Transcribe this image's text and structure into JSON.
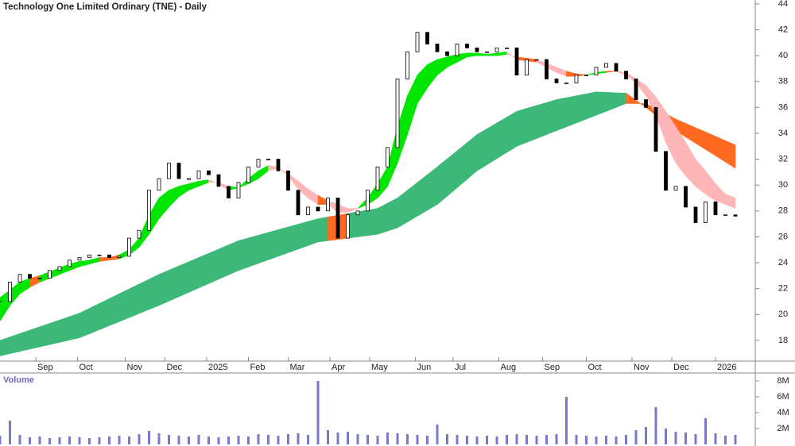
{
  "chart_data": [
    {
      "type": "stock",
      "title": "Technology One Limited Ordinary (TNE) - Daily",
      "x": [
        0,
        5,
        10,
        15,
        20,
        25,
        30,
        35,
        40,
        45,
        50,
        55,
        60,
        65,
        70,
        75,
        80,
        85,
        90,
        95,
        100,
        105,
        110,
        115,
        120,
        125,
        130,
        135,
        140,
        145,
        150,
        155,
        160,
        165,
        170,
        175,
        180,
        185,
        190,
        195,
        200,
        205,
        210,
        215,
        220,
        225,
        230,
        235,
        240,
        245,
        250,
        255,
        260,
        265,
        270,
        275,
        280,
        285,
        290,
        295,
        300,
        305,
        310,
        315,
        320,
        325,
        330,
        335,
        340,
        345,
        350,
        355,
        360,
        365,
        370
      ],
      "close": [
        21.0,
        22.5,
        23.1,
        22.8,
        22.8,
        23.4,
        23.7,
        24.2,
        24.4,
        24.6,
        24.6,
        24.4,
        24.5,
        25.9,
        26.5,
        29.6,
        30.5,
        31.7,
        30.5,
        30.5,
        31.1,
        30.8,
        29.9,
        29.0,
        30.2,
        31.4,
        32.0,
        32.0,
        31.1,
        29.6,
        27.7,
        28.3,
        28.0,
        29.0,
        25.9,
        27.7,
        28.0,
        29.6,
        31.4,
        32.9,
        38.2,
        40.3,
        41.8,
        40.9,
        40.3,
        40.0,
        40.9,
        40.6,
        40.3,
        40.3,
        40.6,
        40.6,
        38.5,
        39.7,
        39.7,
        38.2,
        37.9,
        37.9,
        38.5,
        38.5,
        39.1,
        39.4,
        38.8,
        38.2,
        36.6,
        36.0,
        32.6,
        29.6,
        29.9,
        28.3,
        27.1,
        28.7,
        27.7,
        27.7,
        27.6
      ],
      "fast_band": {
        "a": [
          21.3,
          21.9,
          22.5,
          22.8,
          23.0,
          23.3,
          23.6,
          23.9,
          24.1,
          24.2,
          24.4,
          24.4,
          24.6,
          25.0,
          25.9,
          27.7,
          29.0,
          29.6,
          29.9,
          30.1,
          30.3,
          30.4,
          30.1,
          29.6,
          29.8,
          30.5,
          31.1,
          31.5,
          31.4,
          30.7,
          29.7,
          29.0,
          28.5,
          28.5,
          27.9,
          27.9,
          28.2,
          29.0,
          30.1,
          31.4,
          34.5,
          36.9,
          38.5,
          39.3,
          39.7,
          39.9,
          40.1,
          40.2,
          40.2,
          40.1,
          40.2,
          40.3,
          39.7,
          39.6,
          39.5,
          39.1,
          38.7,
          38.4,
          38.4,
          38.5,
          38.7,
          38.8,
          38.8,
          38.5,
          37.9,
          36.9,
          35.4,
          33.3,
          31.7,
          30.7,
          29.9,
          29.3,
          28.8,
          28.5,
          28.2
        ],
        "b": [
          19.5,
          20.7,
          21.6,
          22.1,
          22.5,
          22.8,
          23.1,
          23.4,
          23.7,
          23.9,
          24.1,
          24.2,
          24.3,
          24.6,
          25.2,
          26.2,
          27.4,
          28.3,
          29.1,
          29.6,
          29.9,
          30.2,
          30.2,
          29.9,
          29.8,
          30.1,
          30.5,
          31.1,
          31.3,
          30.9,
          30.3,
          29.7,
          29.2,
          28.8,
          28.5,
          28.2,
          28.2,
          28.5,
          29.0,
          29.9,
          31.7,
          33.9,
          36.3,
          37.5,
          38.5,
          39.1,
          39.5,
          39.9,
          40.0,
          40.0,
          40.0,
          40.1,
          39.9,
          39.8,
          39.7,
          39.4,
          39.1,
          38.8,
          38.6,
          38.5,
          38.6,
          38.7,
          38.8,
          38.7,
          38.2,
          37.7,
          36.8,
          35.7,
          34.5,
          33.3,
          32.0,
          31.1,
          30.1,
          29.3,
          29.0
        ],
        "colors": {
          "above": "#00e600",
          "between": "#ff6a20",
          "below": "#ffb6b6"
        }
      },
      "slow_band": {
        "x": [
          0,
          40,
          80,
          120,
          160,
          190,
          200,
          220,
          240,
          260,
          280,
          300,
          315,
          325,
          340,
          370
        ],
        "a": [
          18.0,
          20.1,
          23.1,
          25.7,
          27.4,
          28.2,
          29.0,
          31.4,
          33.9,
          35.7,
          36.6,
          37.2,
          37.1,
          36.0,
          34.2,
          31.3
        ],
        "b": [
          16.8,
          18.2,
          20.7,
          23.4,
          25.6,
          26.2,
          26.7,
          28.5,
          31.1,
          33.0,
          34.2,
          35.4,
          36.3,
          36.3,
          35.1,
          33.1
        ],
        "colors": {
          "above": "#3cb878",
          "between": "#ff6a20",
          "below": "#ff6a20"
        }
      },
      "xlim": [
        0,
        380
      ],
      "xticks": [
        {
          "value": 18,
          "label": "Sep"
        },
        {
          "value": 39,
          "label": "Oct"
        },
        {
          "value": 63,
          "label": "Nov"
        },
        {
          "value": 83,
          "label": "Dec"
        },
        {
          "value": 104,
          "label": "2025"
        },
        {
          "value": 125,
          "label": "Feb"
        },
        {
          "value": 145,
          "label": "Mar"
        },
        {
          "value": 166,
          "label": "Apr"
        },
        {
          "value": 186,
          "label": "May"
        },
        {
          "value": 209,
          "label": "Jun"
        },
        {
          "value": 228,
          "label": "Jul"
        },
        {
          "value": 251,
          "label": "Aug"
        },
        {
          "value": 273,
          "label": "Sep"
        },
        {
          "value": 295,
          "label": "Oct"
        },
        {
          "value": 318,
          "label": "Nov"
        },
        {
          "value": 338,
          "label": "Dec"
        },
        {
          "value": 360,
          "label": "2026"
        }
      ],
      "ylim": [
        16.4,
        44.3
      ],
      "yticks": [
        18,
        20,
        22,
        24,
        26,
        28,
        30,
        32,
        34,
        36,
        38,
        40,
        42,
        44
      ]
    },
    {
      "type": "bar",
      "title": "Volume",
      "color": "#7a78c8",
      "values": [
        1100000,
        3000000,
        1200000,
        900000,
        1000000,
        800000,
        900000,
        1000000,
        900000,
        800000,
        900000,
        1000000,
        1100000,
        1000000,
        1300000,
        1700000,
        1400000,
        1200000,
        1100000,
        1000000,
        1200000,
        1000000,
        900000,
        1000000,
        1100000,
        1000000,
        1300000,
        1200000,
        1100000,
        1300000,
        1400000,
        1200000,
        8000000,
        1800000,
        1500000,
        1600000,
        1300000,
        1200000,
        1100000,
        1500000,
        1400000,
        1300000,
        1200000,
        1100000,
        2500000,
        1300000,
        1200000,
        1100000,
        1000000,
        1100000,
        1000000,
        1200000,
        1300000,
        1200000,
        1100000,
        1200000,
        1300000,
        6000000,
        1200000,
        1100000,
        1000000,
        1100000,
        1000000,
        1200000,
        1800000,
        2200000,
        4700000,
        2000000,
        1600000,
        1500000,
        1300000,
        3300000,
        1400000,
        1100000,
        1200000
      ],
      "ylim": [
        0,
        9000000
      ],
      "yticks": [
        {
          "value": 2000000,
          "label": "2M"
        },
        {
          "value": 4000000,
          "label": "4M"
        },
        {
          "value": 6000000,
          "label": "6M"
        },
        {
          "value": 8000000,
          "label": "8M"
        }
      ]
    }
  ]
}
